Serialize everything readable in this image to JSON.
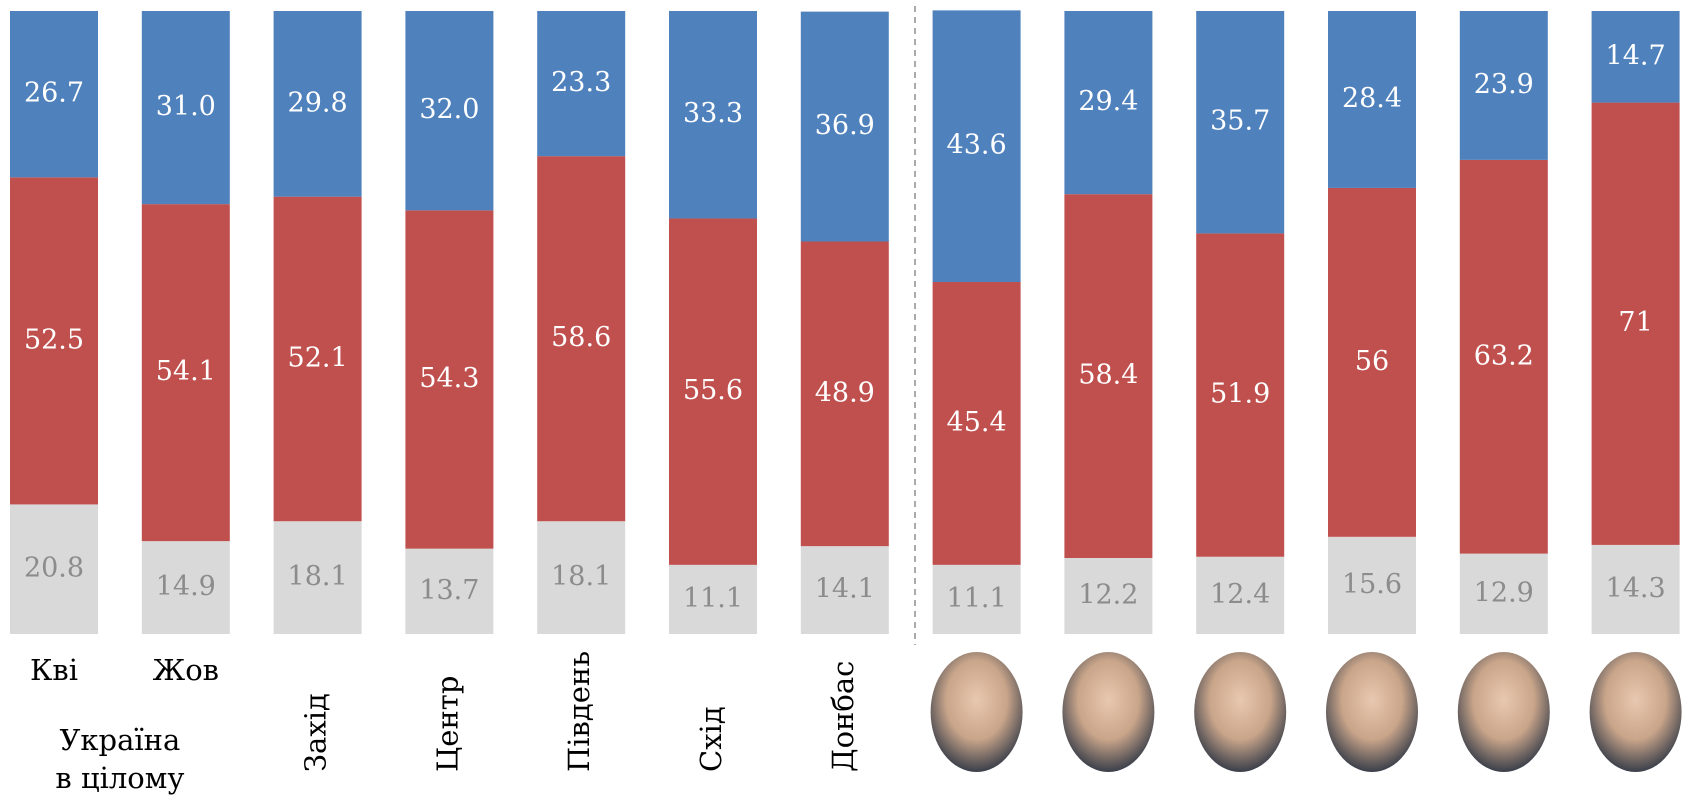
{
  "chart_data": {
    "type": "stacked_bar",
    "categories": [
      "Кві",
      "Жов",
      "Захід",
      "Центр",
      "Південь",
      "Схід",
      "Донбас",
      null,
      null,
      null,
      null,
      null,
      null
    ],
    "group_label": [
      "Україна",
      "в цілому"
    ],
    "ylim": [
      0,
      100
    ],
    "series": [
      {
        "color": "#d9d9d9",
        "label_color": "#8c8c8c",
        "values": [
          20.8,
          14.9,
          18.1,
          13.7,
          18.1,
          11.1,
          14.1,
          11.1,
          12.2,
          12.4,
          15.6,
          12.9,
          14.3
        ]
      },
      {
        "color": "#c0504d",
        "label_color": "#ffffff",
        "values": [
          52.5,
          54.1,
          52.1,
          54.3,
          58.6,
          55.6,
          48.9,
          45.4,
          58.4,
          51.9,
          56,
          63.2,
          71
        ]
      },
      {
        "color": "#4f81bd",
        "label_color": "#ffffff",
        "values": [
          26.7,
          31.0,
          29.8,
          32.0,
          23.3,
          33.3,
          36.9,
          43.6,
          29.4,
          35.7,
          28.4,
          23.9,
          14.7
        ],
        "value_labels": [
          "26.7",
          "31.0",
          "29.8",
          "32.0",
          "23.3",
          "33.3",
          "36.9",
          "43.6",
          "29.4",
          "35.7",
          "28.4",
          "23.9",
          "14.7"
        ]
      }
    ]
  }
}
